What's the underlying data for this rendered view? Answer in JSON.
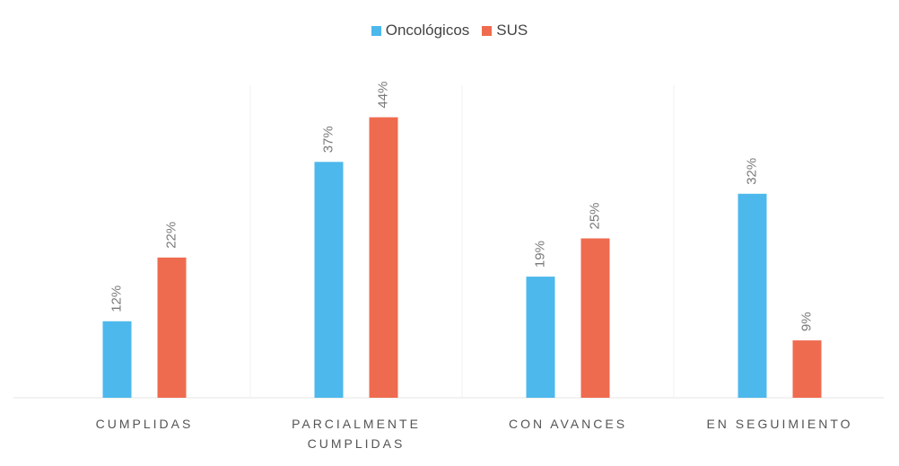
{
  "chart_data": {
    "type": "bar",
    "categories": [
      "CUMPLIDAS",
      "PARCIALMENTE CUMPLIDAS",
      "CON AVANCES",
      "EN SEGUIMIENTO"
    ],
    "series": [
      {
        "name": "Oncológicos",
        "color": "#4db8ec",
        "values": [
          12,
          37,
          19,
          32
        ],
        "value_labels": [
          "12%",
          "37%",
          "19%",
          "32%"
        ]
      },
      {
        "name": "SUS",
        "color": "#ef6b4f",
        "values": [
          22,
          44,
          25,
          9
        ],
        "value_labels": [
          "22%",
          "44%",
          "25%",
          "9%"
        ]
      }
    ],
    "legend": "top"
  }
}
